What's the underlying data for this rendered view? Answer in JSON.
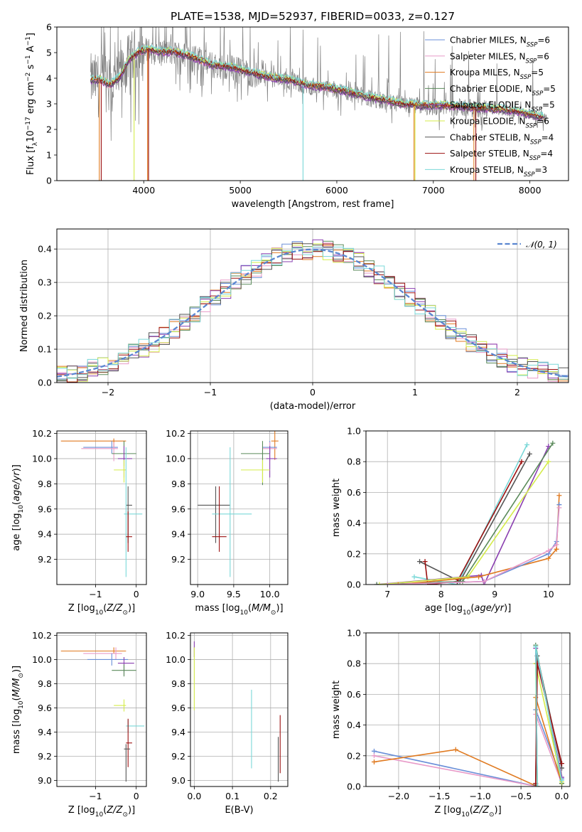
{
  "chart_data": [
    {
      "type": "line",
      "title": "PLATE=1538, MJD=52937, FIBERID=0033, z=0.127",
      "xlabel": "wavelength [Angstrom, rest frame]",
      "ylabel": "Flux [fλ10⁻¹⁷ erg cm⁻² s⁻¹ A⁻¹]",
      "xlim": [
        3100,
        8400
      ],
      "ylim": [
        0,
        6
      ],
      "xticks": [
        4000,
        5000,
        6000,
        7000,
        8000
      ],
      "yticks": [
        0,
        1,
        2,
        3,
        4,
        5,
        6
      ],
      "grid": false,
      "legend_position": "right",
      "series": [
        {
          "name": "Chabrier MILES, N",
          "sub": "SSP",
          "suffix": "=6",
          "color": "#6a8fd8"
        },
        {
          "name": "Salpeter MILES, N",
          "sub": "SSP",
          "suffix": "=6",
          "color": "#e89ac8"
        },
        {
          "name": "Kroupa MILES, N",
          "sub": "SSP",
          "suffix": "=5",
          "color": "#e07a20"
        },
        {
          "name": "Chabrier ELODIE, N",
          "sub": "SSP",
          "suffix": "=5",
          "color": "#5a8a5a"
        },
        {
          "name": "Salpeter ELODIE, N",
          "sub": "SSP",
          "suffix": "=5",
          "color": "#8a3fb0"
        },
        {
          "name": "Kroupa ELODIE, N",
          "sub": "SSP",
          "suffix": "=6",
          "color": "#d4ec4a"
        },
        {
          "name": "Chabrier STELIB, N",
          "sub": "SSP",
          "suffix": "=4",
          "color": "#555555"
        },
        {
          "name": "Salpeter STELIB, N",
          "sub": "SSP",
          "suffix": "=4",
          "color": "#9b1010"
        },
        {
          "name": "Kroupa STELIB, N",
          "sub": "SSP",
          "suffix": "=3",
          "color": "#7ad8d8"
        }
      ],
      "model_continuum": {
        "x": [
          3450,
          3550,
          3650,
          3750,
          3850,
          3950,
          4050,
          4150,
          4300,
          4500,
          4700,
          4900,
          5100,
          5300,
          5500,
          5700,
          5900,
          6100,
          6300,
          6500,
          6700,
          6900,
          7100,
          7300,
          7500,
          7700,
          7900,
          8100
        ],
        "y": [
          3.9,
          3.9,
          3.7,
          4.0,
          4.7,
          5.0,
          5.1,
          5.0,
          5.0,
          4.8,
          4.5,
          4.4,
          4.2,
          4.0,
          3.9,
          3.7,
          3.6,
          3.45,
          3.25,
          3.1,
          2.95,
          2.9,
          2.9,
          2.85,
          2.8,
          2.75,
          2.65,
          2.45
        ]
      }
    },
    {
      "type": "line",
      "xlabel": "(data-model)/error",
      "ylabel": "Normed distribution",
      "xlim": [
        -2.5,
        2.5
      ],
      "ylim": [
        0,
        0.46
      ],
      "xticks": [
        -2,
        -1,
        0,
        1,
        2
      ],
      "yticks": [
        0.0,
        0.1,
        0.2,
        0.3,
        0.4
      ],
      "grid": true,
      "legend_position": "top-right",
      "legend": [
        "𝒩(0, 1)"
      ],
      "gaussian": {
        "mean": 0,
        "sigma": 1
      }
    },
    {
      "type": "scatter",
      "xlabel": "Z [log₁₀(Z/Z⊙)]",
      "ylabel": "age  [log₁₀(age/yr)]",
      "xlim": [
        -1.95,
        0.25
      ],
      "ylim": [
        9.0,
        10.22
      ],
      "xticks": [
        -1,
        0
      ],
      "yticks": [
        9.2,
        9.4,
        9.6,
        9.8,
        10.0,
        10.2
      ],
      "grid": true,
      "points": [
        {
          "x": -0.55,
          "y": 10.14,
          "xerr": [
            1.3,
            0.3
          ],
          "yerr": [
            0.05,
            0.02
          ],
          "series": 2
        },
        {
          "x": -0.6,
          "y": 10.09,
          "xerr": [
            0.7,
            0.15
          ],
          "yerr": [
            0.05,
            0.05
          ],
          "series": 0
        },
        {
          "x": -0.55,
          "y": 10.08,
          "xerr": [
            0.8,
            0.1
          ],
          "yerr": [
            0.1,
            0.05
          ],
          "series": 1
        },
        {
          "x": -0.3,
          "y": 10.04,
          "xerr": [
            0.3,
            0.3
          ],
          "yerr": [
            0.1,
            0.1
          ],
          "series": 3
        },
        {
          "x": -0.3,
          "y": 10.0,
          "xerr": [
            0.15,
            0.2
          ],
          "yerr": [
            0.15,
            0.1
          ],
          "series": 4
        },
        {
          "x": -0.3,
          "y": 9.91,
          "xerr": [
            0.25,
            0.05
          ],
          "yerr": [
            0.1,
            0.08
          ],
          "series": 5
        },
        {
          "x": -0.2,
          "y": 9.63,
          "xerr": [
            0.05,
            0.1
          ],
          "yerr": [
            0.3,
            0.15
          ],
          "series": 6
        },
        {
          "x": -0.25,
          "y": 9.56,
          "xerr": [
            0.05,
            0.4
          ],
          "yerr": [
            0.5,
            0.53
          ],
          "series": 8
        },
        {
          "x": -0.2,
          "y": 9.38,
          "xerr": [
            0.05,
            0.1
          ],
          "yerr": [
            0.12,
            0.2
          ],
          "series": 7
        }
      ]
    },
    {
      "type": "scatter",
      "xlabel": "mass [log₁₀(M/M⊙)]",
      "ylabel": "",
      "xlim": [
        8.9,
        10.25
      ],
      "ylim": [
        9.0,
        10.22
      ],
      "xticks": [
        9.0,
        9.5,
        10.0
      ],
      "yticks": [
        9.2,
        9.4,
        9.6,
        9.8,
        10.0,
        10.2
      ],
      "grid": true,
      "points": [
        {
          "x": 10.07,
          "y": 10.14,
          "xerr": [
            0.05,
            0.05
          ],
          "yerr": [
            0.15,
            0.35
          ],
          "series": 2
        },
        {
          "x": 10.0,
          "y": 10.09,
          "xerr": [
            0.1,
            0.1
          ],
          "yerr": [
            0.05,
            0.05
          ],
          "series": 0
        },
        {
          "x": 10.0,
          "y": 10.08,
          "xerr": [
            0.1,
            0.1
          ],
          "yerr": [
            0.1,
            0.05
          ],
          "series": 1
        },
        {
          "x": 9.9,
          "y": 10.04,
          "xerr": [
            0.3,
            0.1
          ],
          "yerr": [
            0.25,
            0.1
          ],
          "series": 3
        },
        {
          "x": 10.0,
          "y": 10.0,
          "xerr": [
            0.05,
            0.1
          ],
          "yerr": [
            0.15,
            0.1
          ],
          "series": 4
        },
        {
          "x": 9.9,
          "y": 9.91,
          "xerr": [
            0.3,
            0.1
          ],
          "yerr": [
            0.1,
            0.08
          ],
          "series": 5
        },
        {
          "x": 9.25,
          "y": 9.63,
          "xerr": [
            0.25,
            0.2
          ],
          "yerr": [
            0.3,
            0.15
          ],
          "series": 6
        },
        {
          "x": 9.45,
          "y": 9.56,
          "xerr": [
            0.25,
            0.3
          ],
          "yerr": [
            0.5,
            0.53
          ],
          "series": 8
        },
        {
          "x": 9.3,
          "y": 9.38,
          "xerr": [
            0.1,
            0.1
          ],
          "yerr": [
            0.12,
            0.4
          ],
          "series": 7
        }
      ]
    },
    {
      "type": "line",
      "xlabel": "age  [log₁₀(age/yr)]",
      "ylabel": "mass weight",
      "xlim": [
        6.6,
        10.4
      ],
      "ylim": [
        0,
        1.0
      ],
      "xticks": [
        7,
        8,
        9,
        10
      ],
      "yticks": [
        0.0,
        0.2,
        0.4,
        0.6,
        0.8,
        1.0
      ],
      "grid": true,
      "series": [
        {
          "series": 8,
          "x": [
            7.5,
            8.3,
            9.6
          ],
          "y": [
            0.05,
            0.0,
            0.91
          ]
        },
        {
          "series": 6,
          "x": [
            7.6,
            8.35,
            9.65
          ],
          "y": [
            0.15,
            0.02,
            0.85
          ]
        },
        {
          "series": 7,
          "x": [
            7.7,
            7.75,
            8.3,
            9.5
          ],
          "y": [
            0.15,
            0.0,
            0.02,
            0.8
          ]
        },
        {
          "series": 4,
          "x": [
            6.8,
            8.75,
            8.8,
            10.0
          ],
          "y": [
            0.0,
            0.06,
            0.0,
            0.9
          ]
        },
        {
          "series": 3,
          "x": [
            6.8,
            8.4,
            10.08
          ],
          "y": [
            0.0,
            0.02,
            0.92
          ]
        },
        {
          "series": 5,
          "x": [
            6.85,
            8.5,
            10.0
          ],
          "y": [
            0.0,
            0.05,
            0.8
          ]
        },
        {
          "series": 2,
          "x": [
            7.2,
            8.7,
            10.0,
            10.15,
            10.2
          ],
          "y": [
            0.0,
            0.05,
            0.17,
            0.23,
            0.58
          ]
        },
        {
          "series": 0,
          "x": [
            7.0,
            8.8,
            10.0,
            10.15,
            10.2
          ],
          "y": [
            0.0,
            0.02,
            0.2,
            0.28,
            0.52
          ]
        },
        {
          "series": 1,
          "x": [
            7.0,
            8.8,
            10.0,
            10.15,
            10.2
          ],
          "y": [
            0.0,
            0.02,
            0.22,
            0.26,
            0.5
          ]
        }
      ]
    },
    {
      "type": "scatter",
      "xlabel": "Z [log₁₀(Z/Z⊙)]",
      "ylabel": "mass [log₁₀(M/M⊙)]",
      "xlim": [
        -1.95,
        0.25
      ],
      "ylim": [
        8.95,
        10.22
      ],
      "xticks": [
        -1,
        0
      ],
      "yticks": [
        9.0,
        9.2,
        9.4,
        9.6,
        9.8,
        10.0,
        10.2
      ],
      "grid": true,
      "points": [
        {
          "x": -0.55,
          "y": 10.07,
          "xerr": [
            1.3,
            0.3
          ],
          "yerr": [
            0.02,
            0.03
          ],
          "series": 2
        },
        {
          "x": -0.5,
          "y": 10.05,
          "xerr": [
            0.8,
            0.15
          ],
          "yerr": [
            0.05,
            0.05
          ],
          "series": 1
        },
        {
          "x": -0.6,
          "y": 10.0,
          "xerr": [
            0.6,
            0.4
          ],
          "yerr": [
            0.05,
            0.05
          ],
          "series": 0
        },
        {
          "x": -0.3,
          "y": 9.97,
          "xerr": [
            0.15,
            0.25
          ],
          "yerr": [
            0.1,
            0.05
          ],
          "series": 4
        },
        {
          "x": -0.3,
          "y": 9.91,
          "xerr": [
            0.3,
            0.3
          ],
          "yerr": [
            0.05,
            0.05
          ],
          "series": 3
        },
        {
          "x": -0.3,
          "y": 9.62,
          "xerr": [
            0.25,
            0.05
          ],
          "yerr": [
            0.05,
            0.05
          ],
          "series": 5
        },
        {
          "x": -0.2,
          "y": 9.45,
          "xerr": [
            0.05,
            0.4
          ],
          "yerr": [
            0.05,
            0.05
          ],
          "series": 8
        },
        {
          "x": -0.2,
          "y": 9.31,
          "xerr": [
            0.05,
            0.1
          ],
          "yerr": [
            0.2,
            0.2
          ],
          "series": 7
        },
        {
          "x": -0.25,
          "y": 9.26,
          "xerr": [
            0.05,
            0.1
          ],
          "yerr": [
            0.27,
            0.04
          ],
          "series": 6
        }
      ]
    },
    {
      "type": "scatter",
      "xlabel": "E(B-V)",
      "ylabel": "",
      "xlim": [
        -0.01,
        0.245
      ],
      "ylim": [
        8.95,
        10.22
      ],
      "xticks": [
        0.0,
        0.1,
        0.2
      ],
      "yticks": [
        9.0,
        9.2,
        9.4,
        9.6,
        9.8,
        10.0,
        10.2
      ],
      "grid": true,
      "points": [
        {
          "x": 0.0,
          "y": 10.07,
          "xerr": [
            0,
            0
          ],
          "yerr": [
            0.05,
            0.08
          ],
          "series": 4
        },
        {
          "x": 0.0,
          "y": 9.8,
          "xerr": [
            0,
            0
          ],
          "yerr": [
            0.22,
            0.3
          ],
          "series": 5
        },
        {
          "x": 0.15,
          "y": 9.45,
          "xerr": [
            0,
            0
          ],
          "yerr": [
            0.35,
            0.3
          ],
          "series": 8
        },
        {
          "x": 0.225,
          "y": 9.31,
          "xerr": [
            0,
            0
          ],
          "yerr": [
            0.25,
            0.23
          ],
          "series": 7
        },
        {
          "x": 0.22,
          "y": 9.26,
          "xerr": [
            0,
            0
          ],
          "yerr": [
            0.27,
            0.1
          ],
          "series": 6
        }
      ]
    },
    {
      "type": "line",
      "xlabel": "Z [log₁₀(Z/Z⊙)]",
      "ylabel": "mass weight",
      "xlim": [
        -2.4,
        0.1
      ],
      "ylim": [
        0,
        1.0
      ],
      "xticks": [
        -2.0,
        -1.5,
        -1.0,
        -0.5,
        0.0
      ],
      "yticks": [
        0.0,
        0.2,
        0.4,
        0.6,
        0.8,
        1.0
      ],
      "grid": true,
      "series": [
        {
          "series": 0,
          "x": [
            -2.3,
            -0.3,
            -0.32,
            0.0
          ],
          "y": [
            0.23,
            0.0,
            0.5,
            0.05
          ]
        },
        {
          "series": 1,
          "x": [
            -2.3,
            -0.3,
            -0.32,
            0.0
          ],
          "y": [
            0.2,
            0.0,
            0.47,
            0.02
          ]
        },
        {
          "series": 2,
          "x": [
            -2.3,
            -1.3,
            -0.3,
            -0.32,
            0.0
          ],
          "y": [
            0.16,
            0.24,
            0.0,
            0.58,
            0.02
          ]
        },
        {
          "series": 3,
          "x": [
            -0.3,
            -0.32,
            0.0
          ],
          "y": [
            0.0,
            0.92,
            0.02
          ]
        },
        {
          "series": 4,
          "x": [
            -0.3,
            -0.32,
            0.0
          ],
          "y": [
            0.0,
            0.9,
            0.06
          ]
        },
        {
          "series": 5,
          "x": [
            -0.3,
            -0.32,
            0.0
          ],
          "y": [
            0.0,
            0.8,
            0.03
          ]
        },
        {
          "series": 6,
          "x": [
            -0.32,
            -0.3,
            0.0
          ],
          "y": [
            0.01,
            0.85,
            0.12
          ]
        },
        {
          "series": 7,
          "x": [
            -0.32,
            -0.3,
            0.0
          ],
          "y": [
            0.02,
            0.8,
            0.15
          ]
        },
        {
          "series": 8,
          "x": [
            -0.3,
            -0.32,
            0.0
          ],
          "y": [
            0.0,
            0.91,
            0.04
          ]
        }
      ]
    }
  ]
}
